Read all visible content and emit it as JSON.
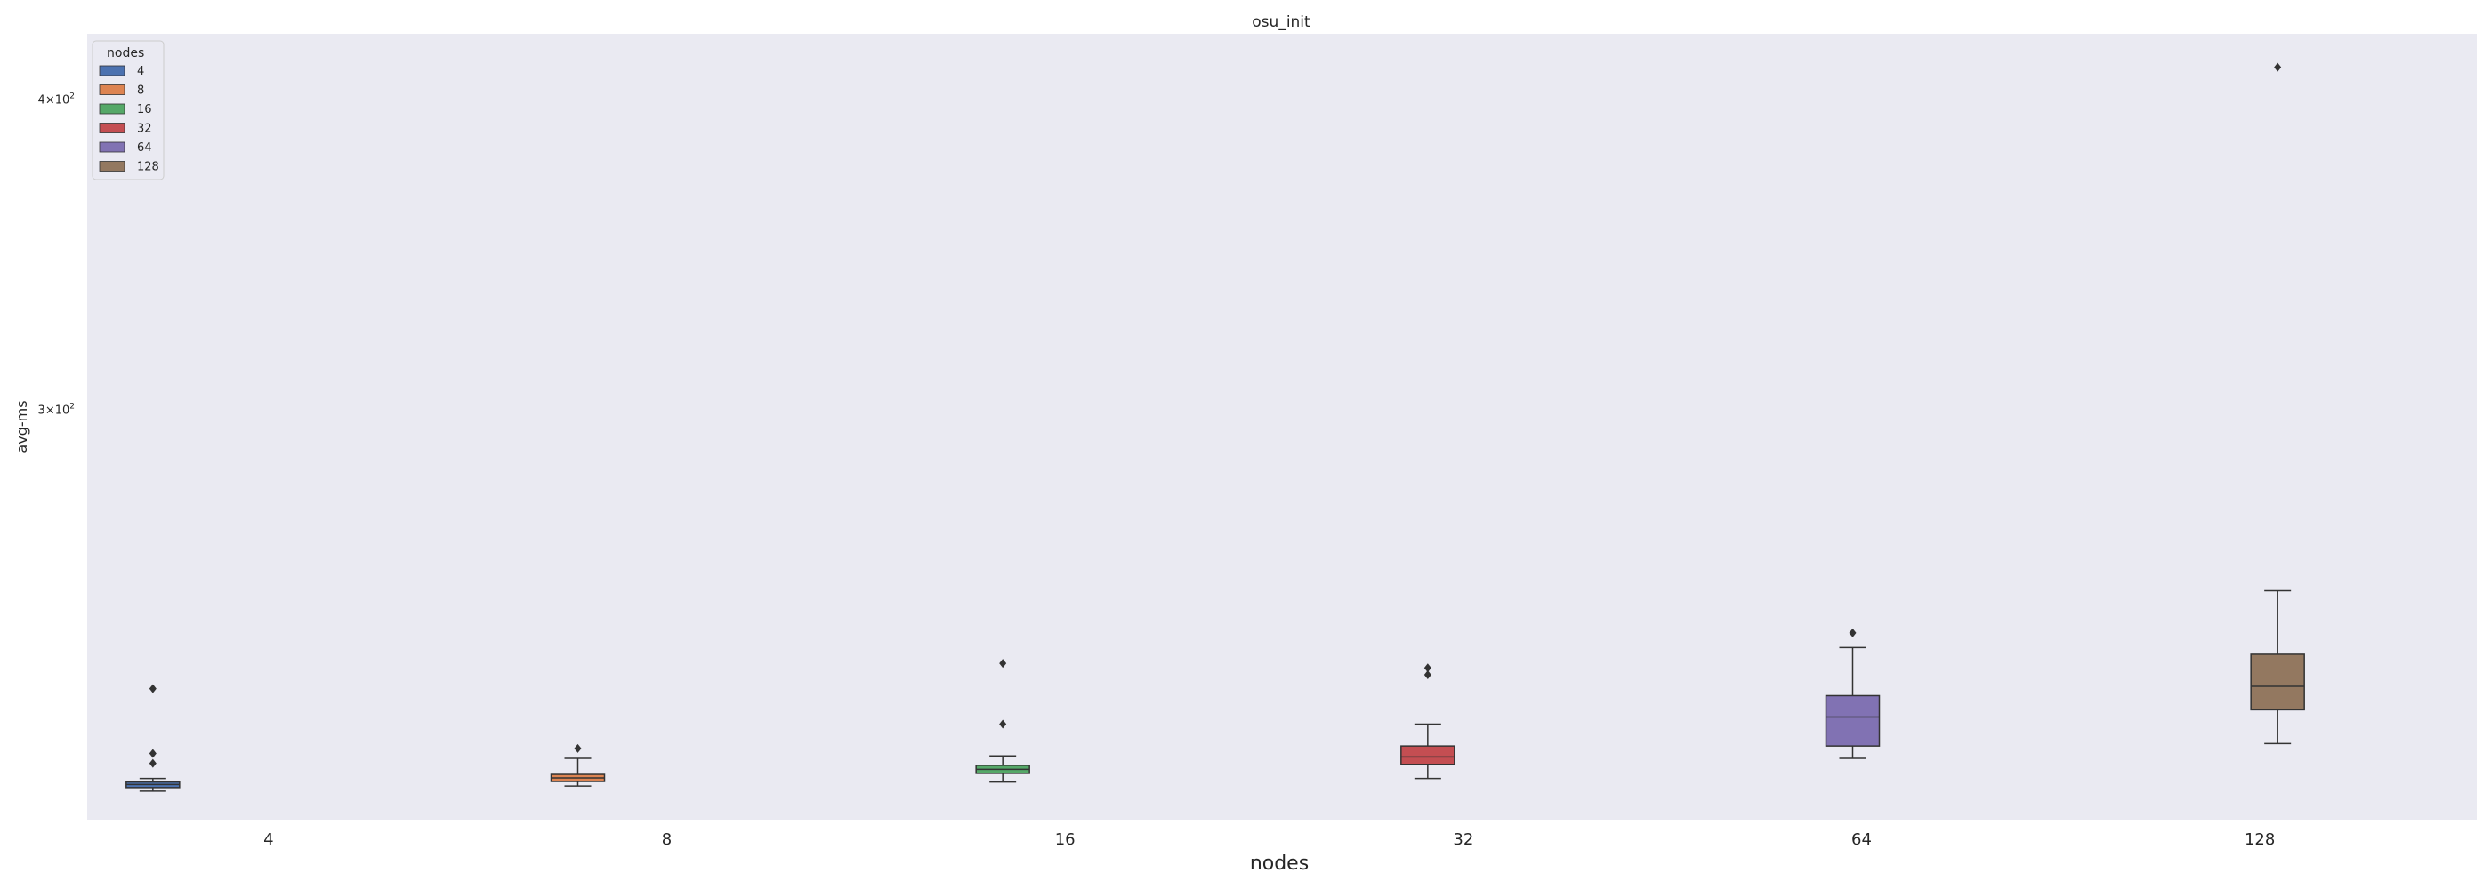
{
  "chart_data": {
    "type": "box",
    "title": "osu_init",
    "xlabel": "nodes",
    "ylabel": "avg-ms",
    "y_scale": "log",
    "ylim": [
      205,
      425
    ],
    "y_ticks": [
      {
        "value": 400,
        "base": "4",
        "exp": "2"
      },
      {
        "value": 300,
        "base": "3",
        "exp": "2"
      }
    ],
    "categories": [
      "4",
      "8",
      "16",
      "32",
      "64",
      "128"
    ],
    "grid": false,
    "background": "#eaeaf2",
    "legend": {
      "title": "nodes",
      "position": "top-left",
      "entries": [
        "4",
        "8",
        "16",
        "32",
        "64",
        "128"
      ]
    },
    "colors": [
      "#4c72b0",
      "#dd8452",
      "#55a868",
      "#c44e52",
      "#8172b3",
      "#937860"
    ],
    "series": [
      {
        "name": "4",
        "whisker_low": 210.5,
        "q1": 211.2,
        "median": 211.8,
        "q3": 212.3,
        "whisker_high": 213.0,
        "outliers": [
          216.0,
          218.0,
          231.5
        ]
      },
      {
        "name": "8",
        "whisker_low": 211.5,
        "q1": 212.4,
        "median": 213.1,
        "q3": 213.8,
        "whisker_high": 217.0,
        "outliers": [
          219.0
        ]
      },
      {
        "name": "16",
        "whisker_low": 212.3,
        "q1": 214.0,
        "median": 214.8,
        "q3": 215.6,
        "whisker_high": 217.5,
        "outliers": [
          224.0,
          237.0
        ]
      },
      {
        "name": "32",
        "whisker_low": 213.0,
        "q1": 215.8,
        "median": 217.3,
        "q3": 219.5,
        "whisker_high": 224.0,
        "outliers": [
          234.5,
          236.0
        ]
      },
      {
        "name": "64",
        "whisker_low": 217.0,
        "q1": 219.5,
        "median": 225.5,
        "q3": 230.0,
        "whisker_high": 240.5,
        "outliers": [
          243.8
        ]
      },
      {
        "name": "128",
        "whisker_low": 220.0,
        "q1": 227.0,
        "median": 232.0,
        "q3": 239.0,
        "whisker_high": 253.5,
        "outliers": [
          412.0
        ]
      }
    ]
  }
}
